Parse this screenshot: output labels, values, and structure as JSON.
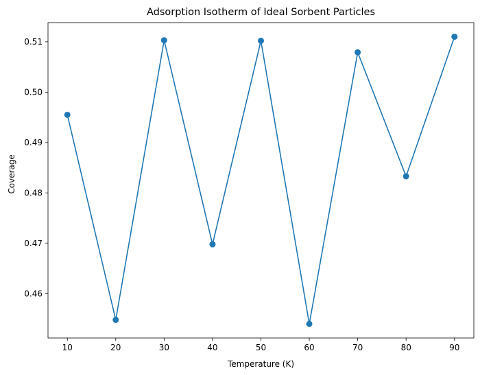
{
  "chart_data": {
    "type": "line",
    "title": "Adsorption Isotherm of Ideal Sorbent Particles",
    "xlabel": "Temperature (K)",
    "ylabel": "Coverage",
    "x": [
      10,
      20,
      30,
      40,
      50,
      60,
      70,
      80,
      90
    ],
    "series": [
      {
        "values": [
          0.4955,
          0.4548,
          0.5103,
          0.4698,
          0.5102,
          0.454,
          0.5079,
          0.4833,
          0.511
        ],
        "color": "#1f77b4",
        "marker": "circle"
      }
    ],
    "xticks": [
      10,
      20,
      30,
      40,
      50,
      60,
      70,
      80,
      90
    ],
    "yticks": [
      0.46,
      0.47,
      0.48,
      0.49,
      0.5,
      0.51
    ],
    "ytick_labels": [
      "0.46",
      "0.47",
      "0.48",
      "0.49",
      "0.50",
      "0.51"
    ],
    "xlim": [
      6,
      94
    ],
    "ylim": [
      0.4512,
      0.5138
    ],
    "grid": false,
    "legend": "none"
  }
}
